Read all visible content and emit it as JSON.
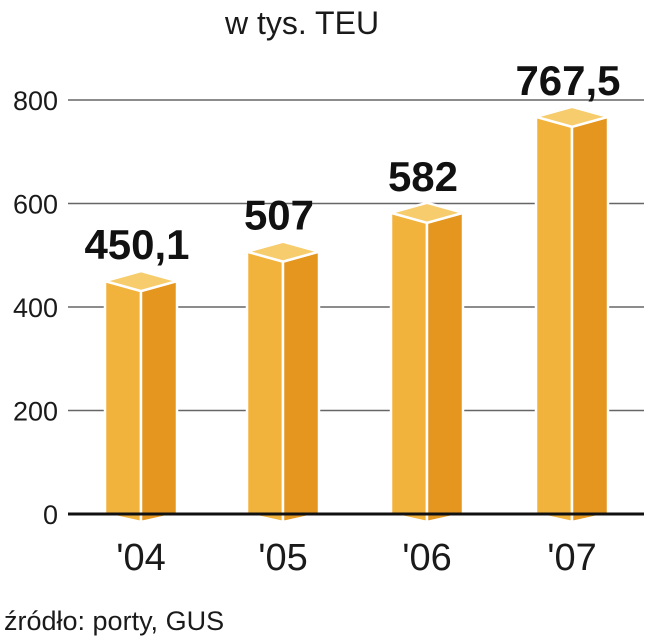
{
  "chart_data": {
    "type": "bar",
    "title": "w tys. TEU",
    "categories": [
      "'04",
      "'05",
      "'06",
      "'07"
    ],
    "values": [
      450.1,
      507,
      582,
      767.5
    ],
    "value_labels": [
      "450,1",
      "507",
      "582",
      "767,5"
    ],
    "yticks": [
      0,
      200,
      400,
      600,
      800
    ],
    "ylim": [
      0,
      800
    ],
    "grid": true,
    "source": "źródło: porty, GUS"
  },
  "colors": {
    "bar_front": "#f2b33d",
    "bar_side": "#e4961e",
    "bar_top": "#f7cc6c",
    "grid": "#666666",
    "axis": "#111111"
  }
}
